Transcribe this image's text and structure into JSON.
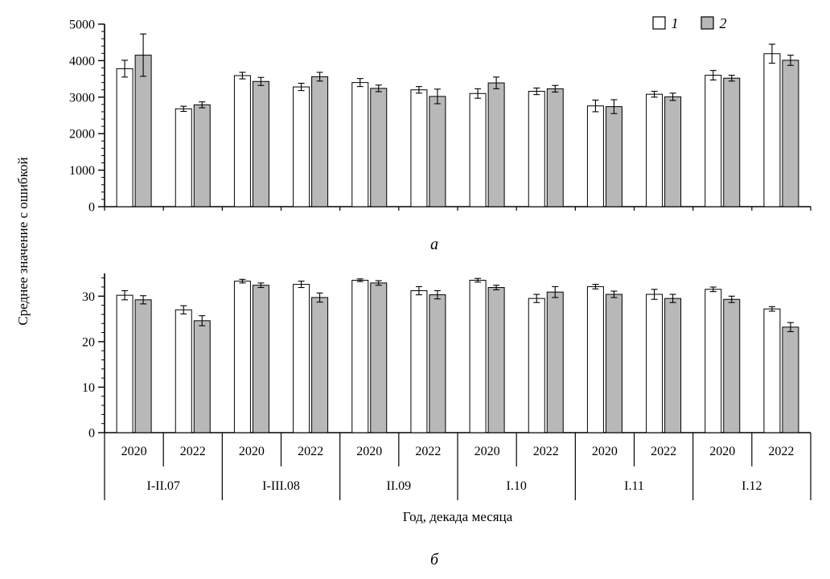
{
  "figure": {
    "y_axis_title": "Среднее значение с ошибкой",
    "x_axis_title": "Год, декада месяца",
    "panel_a_label": "а",
    "panel_b_label": "б",
    "legend": [
      {
        "label": "1",
        "color": "#ffffff"
      },
      {
        "label": "2",
        "color": "#b8b8b8"
      }
    ],
    "colors": {
      "series1": "#ffffff",
      "series2": "#b8b8b8",
      "stroke": "#000000"
    }
  },
  "chart_data": [
    {
      "type": "bar",
      "panel": "а",
      "ylim": [
        0,
        5000
      ],
      "yticks": [
        0,
        1000,
        2000,
        3000,
        4000,
        5000
      ],
      "yminor": 200,
      "groups": [
        "I-II.07",
        "I-III.08",
        "II.09",
        "I.10",
        "I.11",
        "I.12"
      ],
      "years": [
        "2020",
        "2022"
      ],
      "series": [
        {
          "name": "1",
          "values": [
            3780,
            2680,
            3590,
            3280,
            3400,
            3200,
            3100,
            3160,
            2760,
            3080,
            3600,
            4190
          ],
          "errors": [
            230,
            70,
            90,
            100,
            110,
            90,
            130,
            90,
            160,
            80,
            130,
            260
          ]
        },
        {
          "name": "2",
          "values": [
            4150,
            2790,
            3430,
            3560,
            3240,
            3020,
            3390,
            3230,
            2740,
            3010,
            3520,
            4010
          ],
          "errors": [
            580,
            80,
            110,
            120,
            90,
            200,
            160,
            90,
            190,
            100,
            80,
            140
          ]
        }
      ]
    },
    {
      "type": "bar",
      "panel": "б",
      "ylim": [
        0,
        35
      ],
      "yticks": [
        0,
        10,
        20,
        30
      ],
      "yminor": 2,
      "groups": [
        "I-II.07",
        "I-III.08",
        "II.09",
        "I.10",
        "I.11",
        "I.12"
      ],
      "years": [
        "2020",
        "2022"
      ],
      "series": [
        {
          "name": "1",
          "values": [
            30.2,
            27.0,
            33.3,
            32.6,
            33.5,
            31.2,
            33.5,
            29.5,
            32.1,
            30.4,
            31.5,
            27.2
          ],
          "errors": [
            1.0,
            0.9,
            0.4,
            0.7,
            0.3,
            0.9,
            0.4,
            0.9,
            0.5,
            1.1,
            0.5,
            0.5
          ]
        },
        {
          "name": "2",
          "values": [
            29.2,
            24.6,
            32.4,
            29.7,
            32.9,
            30.3,
            31.9,
            30.9,
            30.4,
            29.5,
            29.3,
            23.2
          ],
          "errors": [
            0.9,
            1.1,
            0.5,
            1.0,
            0.5,
            0.9,
            0.5,
            1.2,
            0.7,
            0.9,
            0.7,
            1.0
          ]
        }
      ]
    }
  ]
}
